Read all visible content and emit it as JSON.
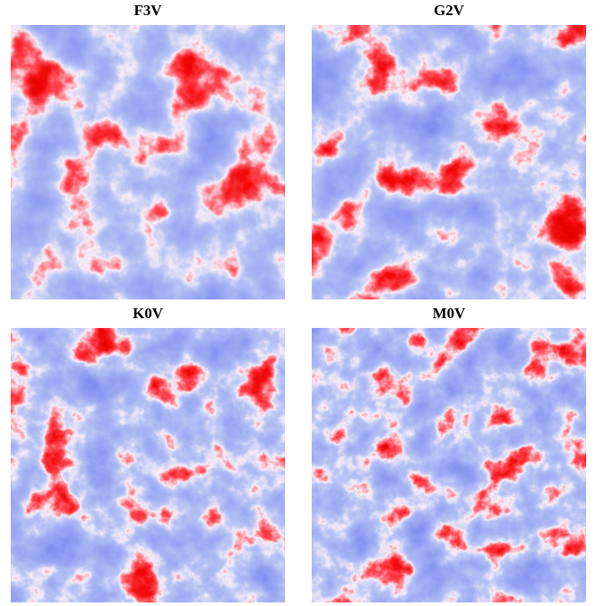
{
  "panels": [
    {
      "title": "F3V"
    },
    {
      "title": "G2V"
    },
    {
      "title": "K0V"
    },
    {
      "title": "M0V"
    }
  ]
}
